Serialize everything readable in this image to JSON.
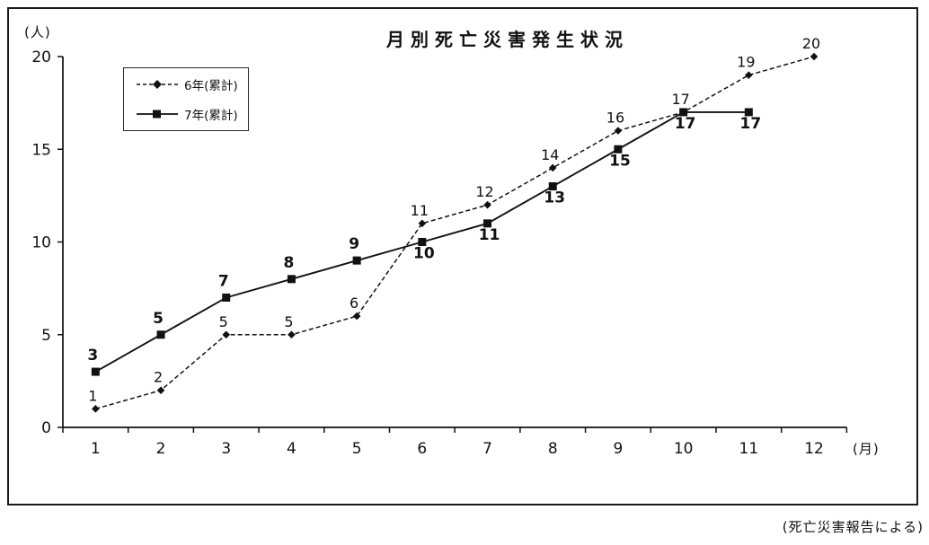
{
  "page": {
    "footer_note": "(死亡災害報告による)"
  },
  "chart_data": {
    "type": "line",
    "title": "月別死亡災害発生状況",
    "xlabel": "(月)",
    "ylabel": "(人)",
    "x_categories": [
      1,
      2,
      3,
      4,
      5,
      6,
      7,
      8,
      9,
      10,
      11,
      12
    ],
    "ylim": [
      0,
      20
    ],
    "yticks": [
      0,
      5,
      10,
      15,
      20
    ],
    "grid": false,
    "legend_position": "upper-left",
    "series": [
      {
        "name": "6年(累計)",
        "line": "dashed",
        "marker": "diamond",
        "values": [
          1,
          2,
          5,
          5,
          6,
          11,
          12,
          14,
          16,
          17,
          19,
          20
        ]
      },
      {
        "name": "7年(累計)",
        "line": "solid",
        "marker": "square",
        "values": [
          3,
          5,
          7,
          8,
          9,
          10,
          11,
          13,
          15,
          17,
          17
        ]
      }
    ]
  }
}
